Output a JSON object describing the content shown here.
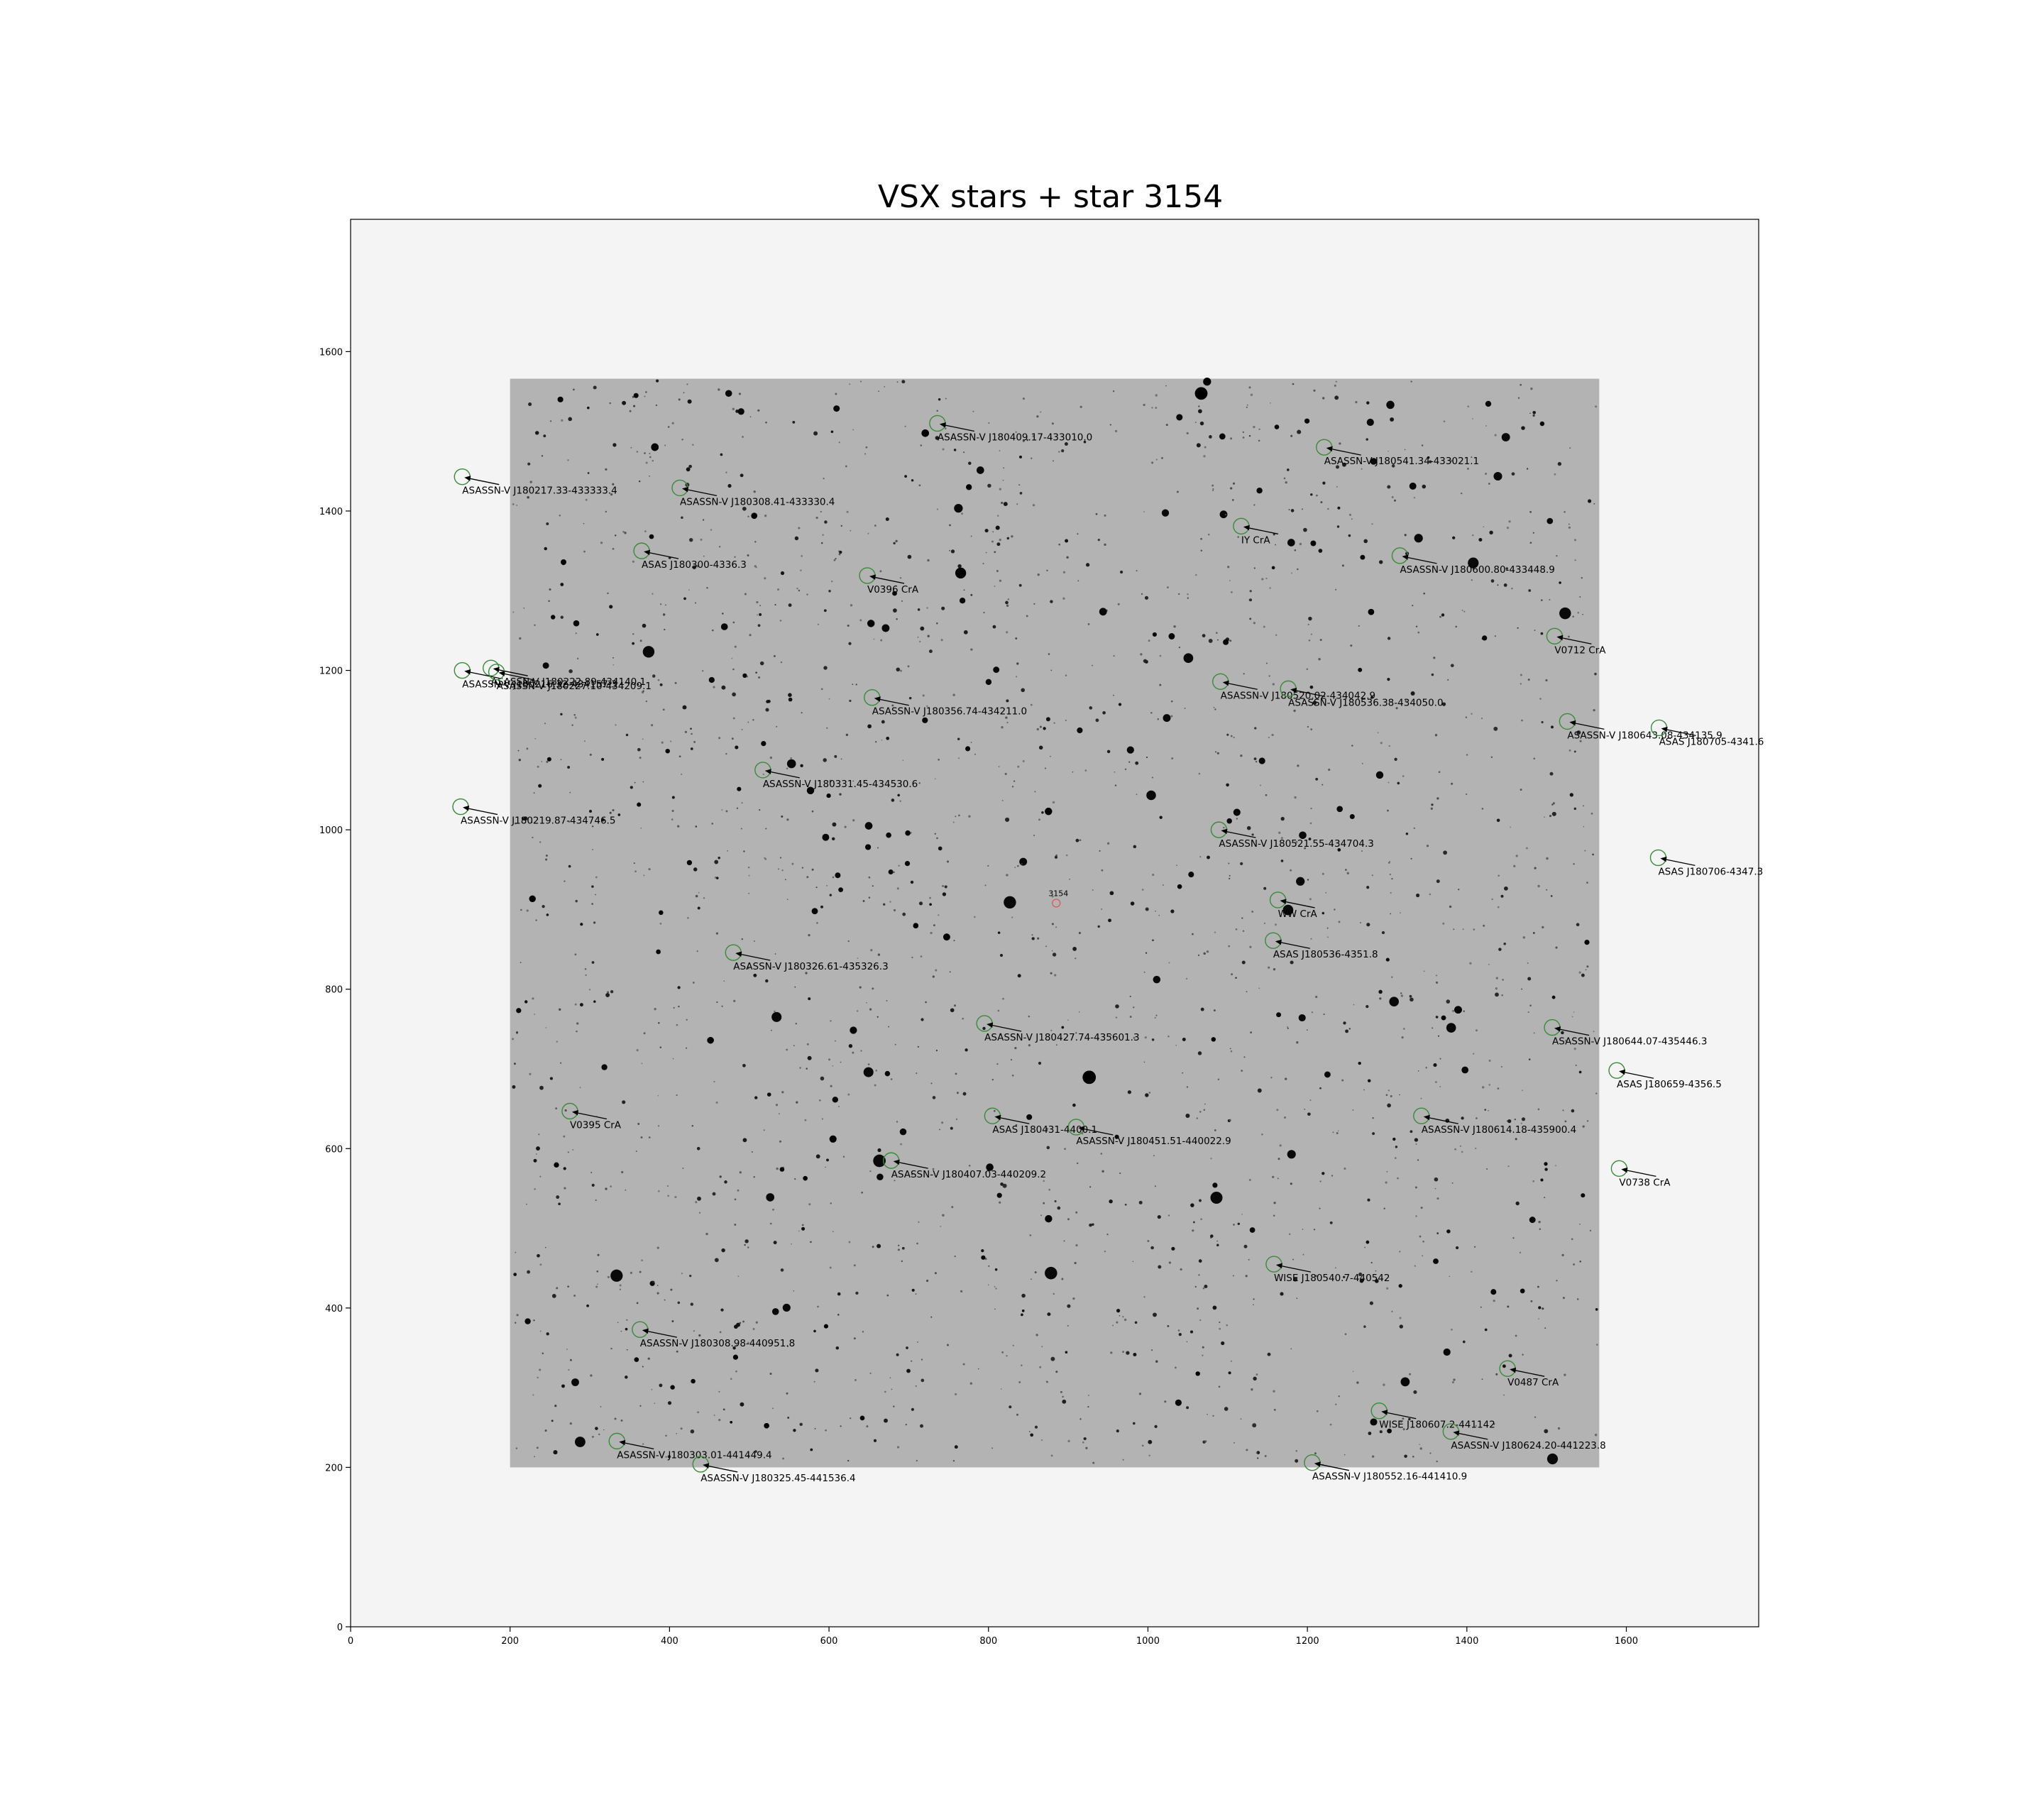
{
  "chart_data": {
    "type": "scatter",
    "title": "VSX stars + star 3154",
    "xlabel": "",
    "ylabel": "",
    "xlim": [
      0,
      1766
    ],
    "ylim": [
      0,
      1766
    ],
    "xticks": [
      0,
      200,
      400,
      600,
      800,
      1000,
      1200,
      1400,
      1600
    ],
    "yticks": [
      0,
      200,
      400,
      600,
      800,
      1000,
      1200,
      1400,
      1600
    ],
    "grid": false,
    "image_extent": [
      200,
      1566,
      200,
      1566
    ],
    "colors": {
      "frame_bg": "#f4f4f4",
      "image_bg": "#b3b3b3",
      "marker": "#3a8a3a",
      "target": "#e05050",
      "arrow": "#000000"
    },
    "target": {
      "name": "3154",
      "x": 885,
      "y": 908
    },
    "vsx_stars": [
      {
        "name": "ASASSN-V J180409.17-433010.0",
        "x": 736,
        "y": 1510
      },
      {
        "name": "ASASSN-V J180541.34-433021.1",
        "x": 1221,
        "y": 1480
      },
      {
        "name": "ASASSN-V J180217.33-433333.4",
        "x": 140,
        "y": 1443
      },
      {
        "name": "ASASSN-V J180308.41-433330.4",
        "x": 413,
        "y": 1429
      },
      {
        "name": "IY CrA",
        "x": 1117,
        "y": 1381
      },
      {
        "name": "ASAS J180300-4336.3",
        "x": 365,
        "y": 1350
      },
      {
        "name": "ASASSN-V J180600.80-433448.9",
        "x": 1316,
        "y": 1344
      },
      {
        "name": "V0396 CrA",
        "x": 648,
        "y": 1319
      },
      {
        "name": "V0712 CrA",
        "x": 1510,
        "y": 1243
      },
      {
        "name": "ASASSN-V J180222.89-434140.1",
        "x": 176,
        "y": 1203
      },
      {
        "name": "ASASSN-V J180216.32-434157.3",
        "x": 140,
        "y": 1200
      },
      {
        "name": "ASASSN-V J180227.10-434209.1",
        "x": 183,
        "y": 1198
      },
      {
        "name": "ASASSN-V J180520.02-434042.9",
        "x": 1091,
        "y": 1186
      },
      {
        "name": "ASASSN-V J180536.38-434050.0",
        "x": 1176,
        "y": 1177
      },
      {
        "name": "ASASSN-V J180356.74-434211.0",
        "x": 654,
        "y": 1166
      },
      {
        "name": "ASASSN-V J180643.08-434135.9",
        "x": 1526,
        "y": 1136
      },
      {
        "name": "ASAS J180705-4341.6",
        "x": 1641,
        "y": 1128
      },
      {
        "name": "ASASSN-V J180331.45-434530.6",
        "x": 517,
        "y": 1075
      },
      {
        "name": "ASASSN-V J180219.87-434746.5",
        "x": 138,
        "y": 1029
      },
      {
        "name": "ASASSN-V J180521.55-434704.3",
        "x": 1089,
        "y": 1000
      },
      {
        "name": "ASAS J180706-4347.3",
        "x": 1640,
        "y": 965
      },
      {
        "name": "WW CrA",
        "x": 1163,
        "y": 912
      },
      {
        "name": "ASAS J180536-4351.8",
        "x": 1157,
        "y": 861
      },
      {
        "name": "ASASSN-V J180326.61-435326.3",
        "x": 480,
        "y": 846
      },
      {
        "name": "ASASSN-V J180427.74-435601.3",
        "x": 795,
        "y": 757
      },
      {
        "name": "ASASSN-V J180644.07-435446.3",
        "x": 1507,
        "y": 752
      },
      {
        "name": "ASAS J180659-4356.5",
        "x": 1588,
        "y": 698
      },
      {
        "name": "V0395 CrA",
        "x": 275,
        "y": 647
      },
      {
        "name": "ASAS J180431-4400.1",
        "x": 805,
        "y": 641
      },
      {
        "name": "ASASSN-V J180614.18-435900.4",
        "x": 1343,
        "y": 641
      },
      {
        "name": "ASASSN-V J180451.51-440022.9",
        "x": 910,
        "y": 627
      },
      {
        "name": "ASASSN-V J180407.03-440209.2",
        "x": 678,
        "y": 585
      },
      {
        "name": "V0738 CrA",
        "x": 1591,
        "y": 575
      },
      {
        "name": "WISE J180540.7-440542",
        "x": 1158,
        "y": 455
      },
      {
        "name": "ASASSN-V J180308.98-440951.8",
        "x": 363,
        "y": 373
      },
      {
        "name": "V0487 CrA",
        "x": 1451,
        "y": 324
      },
      {
        "name": "WISE J180607.2-441142",
        "x": 1290,
        "y": 271
      },
      {
        "name": "ASASSN-V J180624.20-441223.8",
        "x": 1380,
        "y": 245
      },
      {
        "name": "ASASSN-V J180303.01-441449.4",
        "x": 334,
        "y": 233
      },
      {
        "name": "ASASSN-V J180325.45-441536.4",
        "x": 439,
        "y": 204
      },
      {
        "name": "ASASSN-V J180552.16-441410.9",
        "x": 1206,
        "y": 206
      }
    ]
  }
}
